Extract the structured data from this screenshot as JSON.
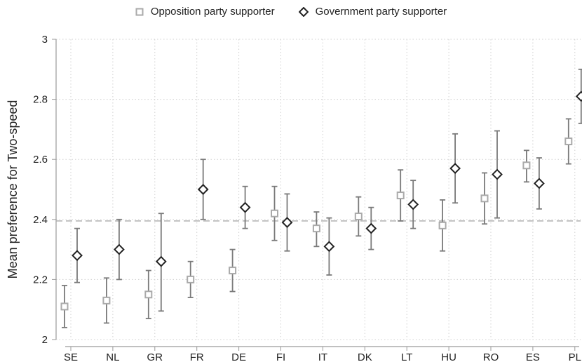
{
  "chart_data": {
    "type": "scatter",
    "ylabel": "Mean preference for Two-speed",
    "xlabel": "",
    "ylim": [
      2,
      3
    ],
    "yticks": [
      "2",
      "2.2",
      "2.4",
      "2.6",
      "2.8",
      "3"
    ],
    "grid": true,
    "legend_position": "top",
    "reference_line": 2.395,
    "categories": [
      "SE",
      "NL",
      "GR",
      "FR",
      "DE",
      "FI",
      "IT",
      "DK",
      "LT",
      "HU",
      "RO",
      "ES",
      "PL"
    ],
    "series": [
      {
        "name": "Opposition party supporter",
        "marker": "square",
        "color": "#aaaaaa",
        "values": [
          2.11,
          2.13,
          2.15,
          2.2,
          2.23,
          2.42,
          2.37,
          2.41,
          2.48,
          2.38,
          2.47,
          2.58,
          2.66
        ],
        "lower": [
          2.04,
          2.055,
          2.07,
          2.14,
          2.16,
          2.33,
          2.31,
          2.345,
          2.395,
          2.295,
          2.385,
          2.525,
          2.585
        ],
        "upper": [
          2.18,
          2.205,
          2.23,
          2.26,
          2.3,
          2.51,
          2.425,
          2.475,
          2.565,
          2.465,
          2.555,
          2.63,
          2.735
        ]
      },
      {
        "name": "Government party supporter",
        "marker": "diamond",
        "color": "#222222",
        "values": [
          2.28,
          2.3,
          2.26,
          2.5,
          2.44,
          2.39,
          2.31,
          2.37,
          2.45,
          2.57,
          2.55,
          2.52,
          2.81
        ],
        "lower": [
          2.19,
          2.2,
          2.095,
          2.4,
          2.37,
          2.295,
          2.215,
          2.3,
          2.37,
          2.455,
          2.405,
          2.435,
          2.72
        ],
        "upper": [
          2.37,
          2.4,
          2.42,
          2.6,
          2.51,
          2.485,
          2.405,
          2.44,
          2.53,
          2.685,
          2.695,
          2.605,
          2.9
        ]
      }
    ]
  },
  "colors": {
    "ci": "#7a7a7a",
    "grid": "#d0d0d0",
    "axis": "#9a9a9a",
    "reference": "#aaaaaa"
  }
}
